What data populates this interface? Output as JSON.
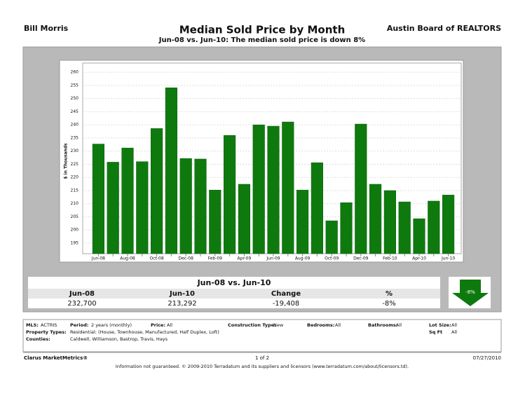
{
  "header": {
    "left": "Bill Morris",
    "title": "Median Sold Price by Month",
    "subtitle": "Jun-08 vs. Jun-10:  The median sold price is down 8%",
    "right": "Austin Board of REALTORS"
  },
  "chart_data": {
    "type": "bar",
    "ylabel": "$ in Thousands",
    "categories": [
      "Jun-08",
      null,
      "Aug-08",
      null,
      "Oct-08",
      null,
      "Dec-08",
      null,
      "Feb-09",
      null,
      "Apr-09",
      null,
      "Jun-09",
      null,
      "Aug-09",
      null,
      "Oct-09",
      null,
      "Dec-09",
      null,
      "Feb-10",
      null,
      "Apr-10",
      null,
      "Jun-10"
    ],
    "values": [
      232.7,
      225.8,
      231.2,
      226.0,
      238.6,
      254.1,
      227.2,
      227.0,
      215.2,
      236.0,
      217.4,
      240.0,
      239.5,
      241.1,
      215.2,
      225.6,
      203.5,
      210.4,
      240.3,
      217.4,
      215.0,
      210.7,
      204.3,
      211.0,
      213.3
    ],
    "color": "#0e7a0e",
    "ylim": [
      191,
      263.5
    ],
    "yticks": [
      195,
      200,
      205,
      210,
      215,
      220,
      225,
      230,
      235,
      240,
      245,
      250,
      255,
      260
    ],
    "grid": true
  },
  "summary": {
    "title": "Jun-08 vs. Jun-10",
    "headers": [
      "Jun-08",
      "Jun-10",
      "Change",
      "%"
    ],
    "values": [
      "232,700",
      "213,292",
      "-19,408",
      "-8%"
    ],
    "badge": "-8%"
  },
  "criteria": [
    [
      "MLS:",
      "ACTRIS"
    ],
    [
      "Period:",
      "2 years (monthly)"
    ],
    [
      "Price:",
      "All"
    ],
    [
      "Construction Type:",
      "New"
    ],
    [
      "Bedrooms:",
      "All"
    ],
    [
      "Bathrooms:",
      "All"
    ],
    [
      "Lot Size:",
      "All"
    ],
    [
      "Property Types:",
      "Residential: (House, Townhouse, Manufactured, Half Duplex, Loft)"
    ],
    [
      "Sq Ft",
      "All"
    ],
    [
      "Counties:",
      "Caldwell, Williamson, Bastrop, Travis, Hays"
    ]
  ],
  "footer": {
    "brand": "Clarus MarketMetrics®",
    "page": "1 of 2",
    "date": "07/27/2010",
    "note": "Information not guaranteed.  © 2009-2010 Terradatum and its suppliers and licensors (www.terradatum.com/about/licensors.td)."
  }
}
